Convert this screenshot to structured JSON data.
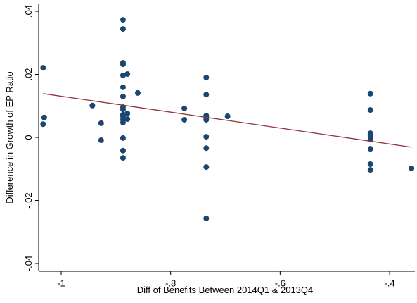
{
  "chart_data": {
    "type": "scatter",
    "xlabel": "Diff of Benefits Between 2014Q1 & 2013Q4",
    "ylabel": "Difference in Growth of EP Ratio",
    "x": [
      -1.033,
      -1.031,
      -1.033,
      -0.943,
      -0.927,
      -0.927,
      -0.887,
      -0.887,
      -0.887,
      -0.887,
      -0.887,
      -0.887,
      -0.887,
      -0.887,
      -0.887,
      -0.887,
      -0.887,
      -0.887,
      -0.887,
      -0.887,
      -0.887,
      -0.887,
      -0.879,
      -0.879,
      -0.879,
      -0.86,
      -0.775,
      -0.775,
      -0.735,
      -0.735,
      -0.735,
      -0.735,
      -0.735,
      -0.735,
      -0.735,
      -0.735,
      -0.735,
      -0.696,
      -0.435,
      -0.435,
      -0.435,
      -0.435,
      -0.435,
      -0.435,
      -0.435,
      -0.435,
      -0.435,
      -0.36
    ],
    "y": [
      0.0221,
      0.0063,
      0.0042,
      0.0101,
      0.0045,
      -0.0009,
      0.0373,
      0.0344,
      0.0237,
      0.0232,
      0.0197,
      0.0159,
      0.013,
      0.0096,
      0.0089,
      0.0072,
      0.0067,
      0.0056,
      0.0047,
      -0.0002,
      -0.0042,
      -0.0065,
      0.0201,
      0.0076,
      0.0058,
      0.0141,
      0.0092,
      0.0056,
      0.019,
      0.0136,
      0.0069,
      0.0063,
      0.0056,
      0.0002,
      -0.0034,
      -0.0094,
      -0.0257,
      0.0067,
      0.0139,
      0.0087,
      0.0013,
      0.0007,
      0,
      -0.0007,
      -0.0036,
      -0.0085,
      -0.0103,
      -0.0098
    ],
    "color": "#1a476f",
    "fit": {
      "x": [
        -1.033,
        -0.36
      ],
      "y": [
        0.0139,
        -0.0031
      ],
      "color": "#90353b"
    },
    "xlim": [
      -1.0411,
      -0.3538
    ],
    "ylim": [
      -0.04246,
      0.04246
    ],
    "xticks": [
      -1,
      {
        "value": -0.8,
        "label": "-.8"
      },
      {
        "value": -0.6,
        "label": "-.6"
      },
      {
        "value": -0.4,
        "label": "-.4"
      }
    ],
    "yticks": [
      {
        "value": -0.04,
        "label": "-.04"
      },
      {
        "value": -0.02,
        "label": "-.02"
      },
      0,
      {
        "value": 0.02,
        "label": ".02"
      },
      {
        "value": 0.04,
        "label": ".04"
      }
    ],
    "grid": false
  }
}
